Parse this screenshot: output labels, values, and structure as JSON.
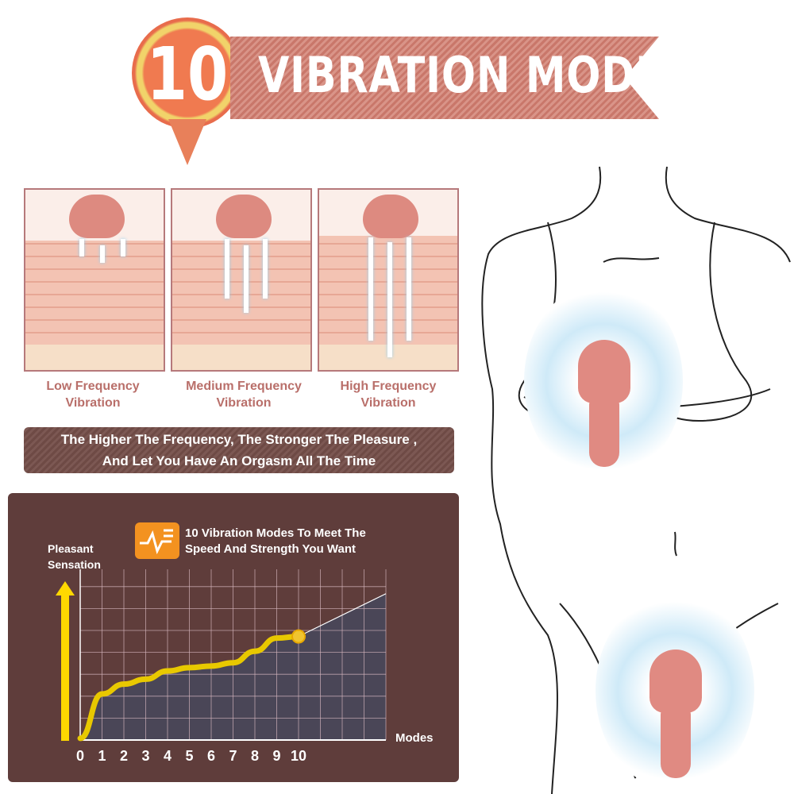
{
  "header": {
    "number": "10",
    "title": "VIBRATION MODES"
  },
  "panels": [
    {
      "line1": "Low Frequency",
      "line2": "Vibration"
    },
    {
      "line1": "Medium Frequency",
      "line2": "Vibration"
    },
    {
      "line1": "High Frequency",
      "line2": "Vibration"
    }
  ],
  "slogan": {
    "line1": "The Higher The Frequency, The Stronger The Pleasure ,",
    "line2": "And Let You Have An Orgasm All The Time"
  },
  "chart_data": {
    "type": "line",
    "title": "10 Vibration Modes To Meet The Speed And Strength You Want",
    "title_line1": "10 Vibration Modes To Meet The",
    "title_line2": "Speed And Strength You Want",
    "ylabel_line1": "Pleasant",
    "ylabel_line2": "Sensation",
    "xlabel": "Modes",
    "x": [
      0,
      1,
      2,
      3,
      4,
      5,
      6,
      7,
      8,
      9,
      10
    ],
    "y_relative": [
      0.01,
      0.28,
      0.34,
      0.37,
      0.42,
      0.44,
      0.45,
      0.47,
      0.54,
      0.62,
      0.63
    ],
    "extension_end": {
      "x": 14,
      "y_relative": 0.89
    },
    "xlim": [
      0,
      14
    ],
    "ylim": [
      0,
      1
    ],
    "grid": true,
    "colors": {
      "curve": "#e8c800",
      "fill": "#4a4657",
      "background": "#5f3d3b",
      "icon": "#f39220"
    },
    "icon": "pulse-icon"
  }
}
